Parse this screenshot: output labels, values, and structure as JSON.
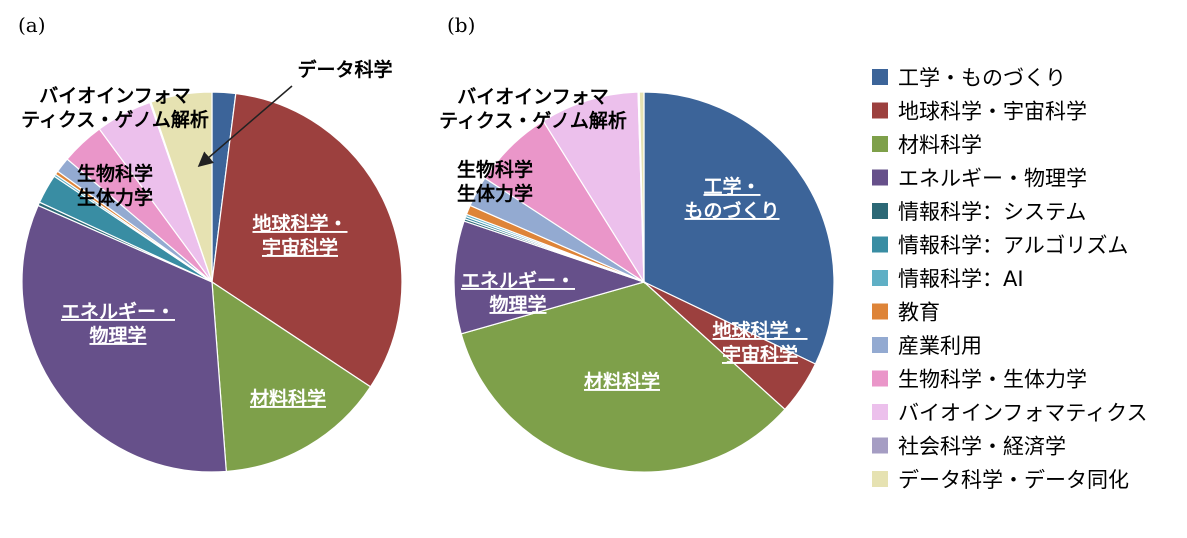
{
  "panels": [
    "(a)",
    "(b)"
  ],
  "colors": [
    "#3c6499",
    "#9c403e",
    "#7ea04a",
    "#66508a",
    "#2c6876",
    "#398da3",
    "#5fafc5",
    "#de8438",
    "#93aad1",
    "#ea96c9",
    "#ecc0ec",
    "#a59dc3",
    "#e6e2b2"
  ],
  "legend": [
    "工学・ものづくり",
    "地球科学・宇宙科学",
    "材料科学",
    "エネルギー・物理学",
    "情報科学：システム",
    "情報科学：アルゴリズム",
    "情報科学：AI",
    "教育",
    "産業利用",
    "生物科学・生体力学",
    "バイオインフォマティクス",
    "社会科学・経済学",
    "データ科学・データ同化"
  ],
  "chart_data": [
    {
      "type": "pie",
      "panel": "(a)",
      "categories": [
        "工学・ものづくり",
        "地球科学・宇宙科学",
        "材料科学",
        "エネルギー・物理学",
        "情報科学：システム",
        "情報科学：アルゴリズム",
        "情報科学：AI",
        "教育",
        "産業利用",
        "生物科学・生体力学",
        "バイオインフォマティクス",
        "社会科学・経済学",
        "データ科学・データ同化"
      ],
      "values": [
        2.0,
        32.3,
        14.5,
        32.8,
        0.3,
        2.5,
        0.2,
        0.3,
        1.3,
        3.7,
        4.8,
        0.1,
        5.2
      ],
      "labels": [
        {
          "lines": [
            "地球科学・",
            "宇宙科学"
          ],
          "style": "white"
        },
        {
          "lines": [
            "材料科学"
          ],
          "style": "white"
        },
        {
          "lines": [
            "エネルギー・",
            "物理学"
          ],
          "style": "white"
        },
        {
          "lines": [
            "生物科学",
            "生体力学"
          ],
          "style": "dark"
        },
        {
          "lines": [
            "バイオインフォマ",
            "ティクス・ゲノム解析"
          ],
          "style": "dark"
        },
        {
          "lines": [
            "データ科学"
          ],
          "style": "dark"
        }
      ]
    },
    {
      "type": "pie",
      "panel": "(b)",
      "categories": [
        "工学・ものづくり",
        "地球科学・宇宙科学",
        "材料科学",
        "エネルギー・物理学",
        "情報科学：システム",
        "情報科学：アルゴリズム",
        "情報科学：AI",
        "教育",
        "産業利用",
        "生物科学・生体力学",
        "バイオインフォマティクス",
        "社会科学・経済学",
        "データ科学・データ同化"
      ],
      "values": [
        32.1,
        4.6,
        33.9,
        9.6,
        0.2,
        0.2,
        0.2,
        0.8,
        2.6,
        6.9,
        8.4,
        0.1,
        0.4
      ],
      "labels": [
        {
          "lines": [
            "工学・",
            "ものづくり"
          ],
          "style": "white"
        },
        {
          "lines": [
            "地球科学・",
            "宇宙科学"
          ],
          "style": "white"
        },
        {
          "lines": [
            "材料科学"
          ],
          "style": "white"
        },
        {
          "lines": [
            "エネルギー・",
            "物理学"
          ],
          "style": "white"
        },
        {
          "lines": [
            "生物科学",
            "生体力学"
          ],
          "style": "dark"
        },
        {
          "lines": [
            "バイオインフォマ",
            "ティクス・ゲノム解析"
          ],
          "style": "dark"
        }
      ]
    }
  ]
}
